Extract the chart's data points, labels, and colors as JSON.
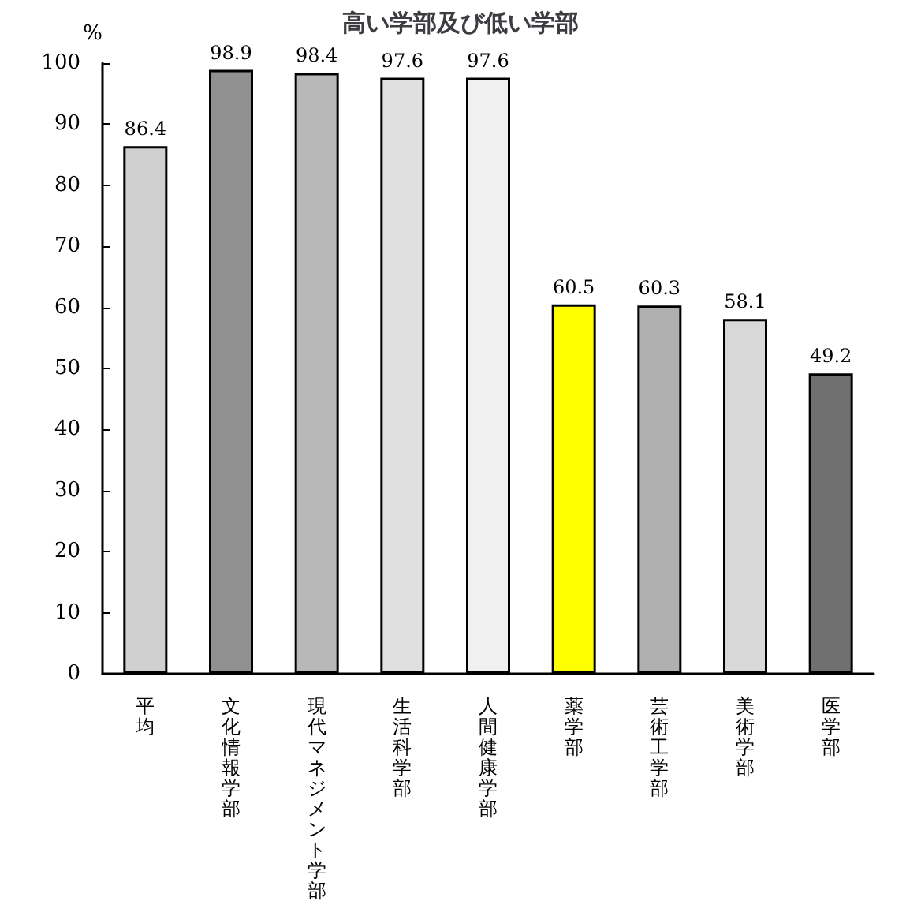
{
  "chart_data": {
    "type": "bar",
    "title": "高い学部及び低い学部",
    "ylabel": "%",
    "categories": [
      "平均",
      "文化情報学部",
      "現代マネジメント学部",
      "生活科学部",
      "人間健康学部",
      "薬学部",
      "芸術工学部",
      "美術学部",
      "医学部"
    ],
    "values": [
      86.4,
      98.9,
      98.4,
      97.6,
      97.6,
      60.5,
      60.3,
      58.1,
      49.2
    ],
    "colors": [
      "#d0d0d0",
      "#909090",
      "#b8b8b8",
      "#e0e0e0",
      "#f0f0f0",
      "#ffff00",
      "#b0b0b0",
      "#d8d8d8",
      "#707070"
    ],
    "data_labels": true,
    "ylim": [
      0,
      100
    ],
    "yticks": [
      0,
      10,
      20,
      30,
      40,
      50,
      60,
      70,
      80,
      90,
      100
    ],
    "grid": false
  }
}
